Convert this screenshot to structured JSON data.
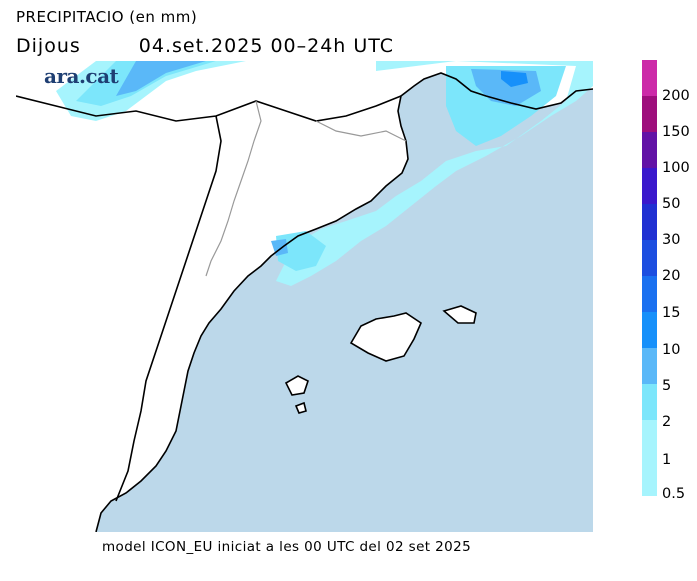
{
  "header": {
    "title": "PRECIPITACIO (en mm)",
    "day": "Dijous",
    "period": "04.set.2025 00–24h UTC"
  },
  "logo": "ara.cat",
  "footer": "model ICON_EU iniciat a les 00 UTC del 02 set 2025",
  "colors": {
    "sea": "#bcd8ea",
    "land": "#ffffff",
    "coast": "#000000",
    "border": "#999999"
  },
  "legend": {
    "labels": [
      "200",
      "150",
      "100",
      "50",
      "30",
      "20",
      "15",
      "10",
      "5",
      "2",
      "1",
      "0.5"
    ],
    "colors": [
      "#cc2aa8",
      "#9e0e7c",
      "#6212a6",
      "#3a18cc",
      "#2030d2",
      "#1c4ee0",
      "#1a70f0",
      "#1690fa",
      "#5ab8f8",
      "#7ce6fb",
      "#a6f4fd",
      "#a6f4fd"
    ]
  }
}
